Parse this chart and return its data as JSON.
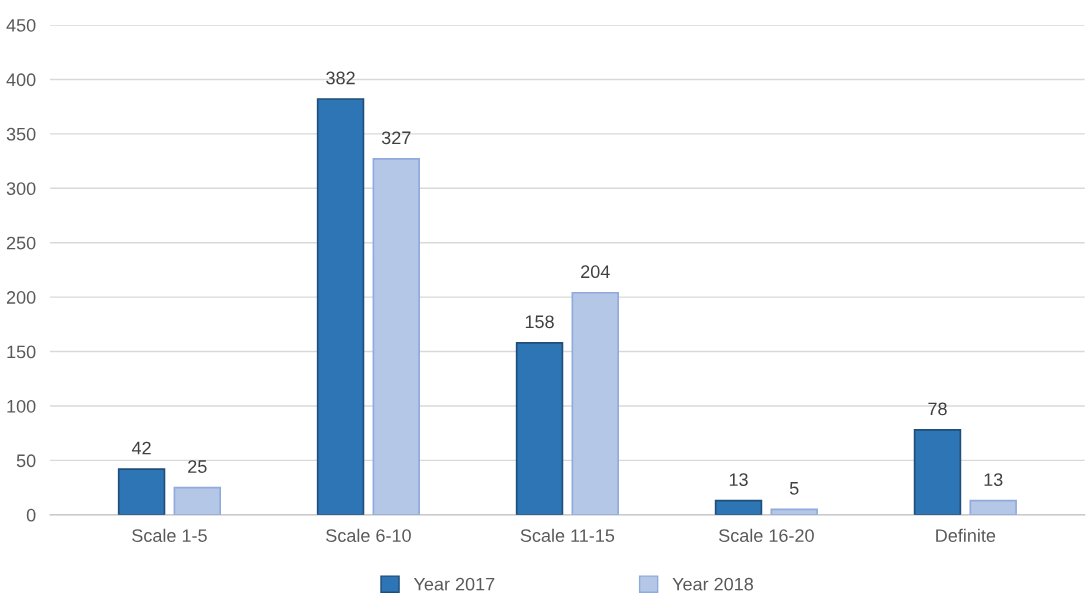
{
  "chart_data": {
    "type": "bar",
    "categories": [
      "Scale 1-5",
      "Scale 6-10",
      "Scale 11-15",
      "Scale 16-20",
      "Definite"
    ],
    "series": [
      {
        "name": "Year 2017",
        "color": "#2e75b6",
        "values": [
          42,
          382,
          158,
          13,
          78
        ]
      },
      {
        "name": "Year 2018",
        "color": "#b4c7e7",
        "values": [
          25,
          327,
          204,
          5,
          13
        ]
      }
    ],
    "ylim": [
      0,
      450
    ],
    "yticks": [
      0,
      50,
      100,
      150,
      200,
      250,
      300,
      350,
      400,
      450
    ],
    "grid": "y",
    "legend": "bottom",
    "data_labels": true
  }
}
